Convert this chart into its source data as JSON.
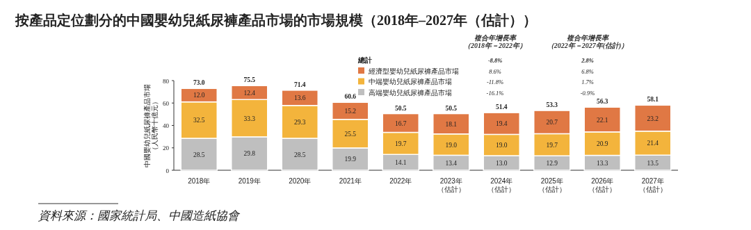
{
  "chart_data": {
    "type": "bar",
    "stacked": true,
    "title": "按產品定位劃分的中國嬰幼兒紙尿褲產品市場的市場規模（2018年–2027年（估計））",
    "ylabel": "中國嬰幼兒紙尿褲產品市場（人民幣十億元）",
    "categories": [
      "2018年",
      "2019年",
      "2020年",
      "2021年",
      "2022年",
      "2023年（估計）",
      "2024年（估計）",
      "2025年（估計）",
      "2026年（估計）",
      "2027年（估計）"
    ],
    "series": [
      {
        "name": "高端嬰幼兒紙尿褲產品市場",
        "color": "#bfbfbf",
        "values": [
          28.5,
          29.8,
          28.5,
          19.9,
          14.1,
          13.4,
          13.0,
          12.9,
          13.3,
          13.5
        ],
        "value_labels": [
          "28.5",
          "29.8",
          "28.5",
          "19.9",
          "14.1",
          "13.4",
          "13.0",
          "12.9",
          "13.3",
          "13.5"
        ]
      },
      {
        "name": "中端嬰幼兒紙尿褲產品市場",
        "color": "#f3b43c",
        "values": [
          32.5,
          33.3,
          29.3,
          25.5,
          19.7,
          19.0,
          19.0,
          19.7,
          20.9,
          21.4
        ],
        "value_labels": [
          "32.5",
          "33.3",
          "29.3",
          "25.5",
          "19.7",
          "19.0",
          "19.0",
          "19.7",
          "20.9",
          "21.4"
        ]
      },
      {
        "name": "經濟型嬰幼兒紙尿褲產品市場",
        "color": "#e07844",
        "values": [
          12.0,
          12.4,
          13.6,
          15.2,
          16.7,
          18.1,
          19.4,
          20.7,
          22.1,
          23.2
        ],
        "value_labels": [
          "12.0",
          "12.4",
          "13.6",
          "15.2",
          "16.7",
          "18.1",
          "19.4",
          "20.7",
          "22.1",
          "23.2"
        ]
      }
    ],
    "totals": [
      "73.0",
      "75.5",
      "71.4",
      "60.6",
      "50.5",
      "50.5",
      "51.4",
      "53.3",
      "56.3",
      "58.1"
    ],
    "ylim": [
      0,
      80
    ],
    "yticks": [
      0,
      20,
      40,
      60,
      80
    ],
    "legend": "top right",
    "annotations": [
      "複合年增長率（2018年－2022年）",
      "複合年增長率（2022年－2027年(估計)）",
      "總計",
      "-8.8%",
      "2.8%",
      "8.6%",
      "6.8%",
      "-11.8%",
      "1.7%",
      "-16.1%",
      "-0.9%",
      "資料來源：國家統計局、中國造紙協會"
    ]
  }
}
